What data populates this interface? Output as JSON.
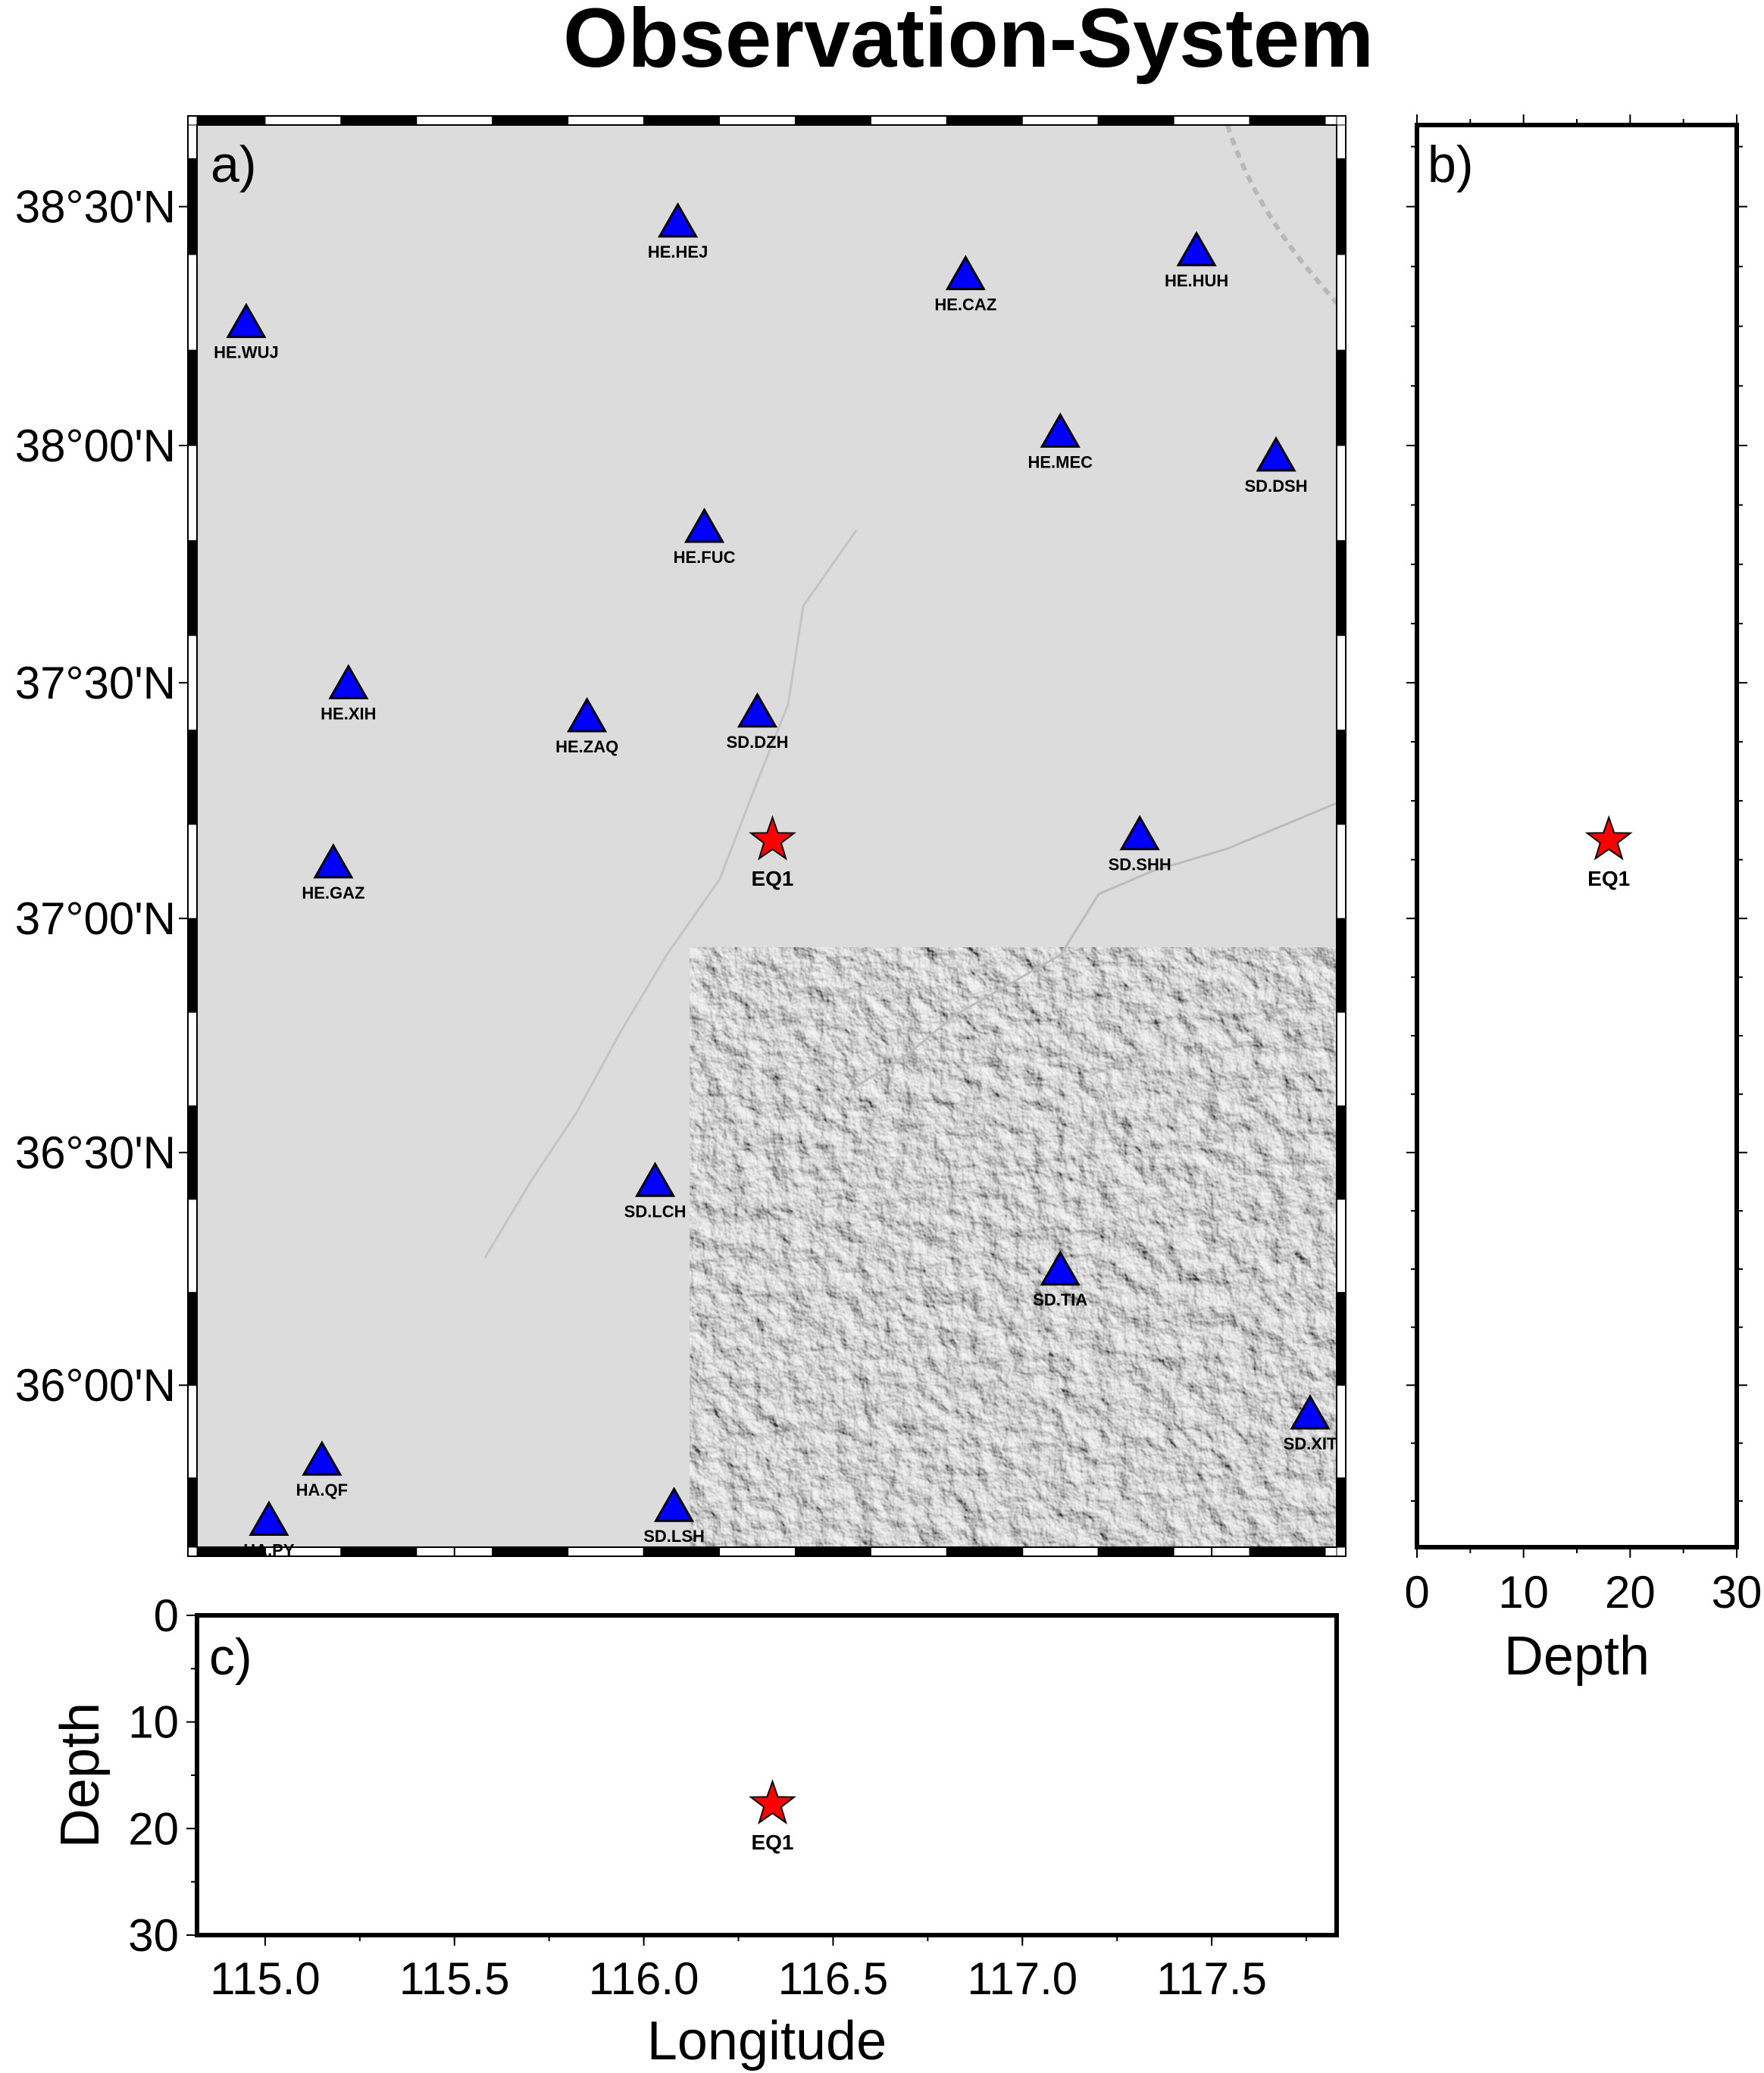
{
  "title": "Observation-System",
  "colors": {
    "station": "#0000ff",
    "event": "#ff0000",
    "map_background": "#d6d6d6",
    "relief_shade": "#a8a8a8",
    "relief_light": "#f4f4f4"
  },
  "icons": {
    "station": "triangle-icon",
    "event": "star-icon"
  },
  "panels": {
    "map": {
      "label": "a)"
    },
    "depth_lat": {
      "label": "b)",
      "xlabel": "Depth"
    },
    "depth_lon": {
      "label": "c)",
      "xlabel": "Longitude",
      "ylabel": "Depth"
    }
  },
  "chart_data": {
    "type": "scatter",
    "map": {
      "projection": "mercator",
      "lon_range": [
        114.82,
        117.83
      ],
      "lat_range": [
        35.65,
        38.67
      ],
      "lat_ticks": [
        {
          "value": 36.0,
          "label": "36°00'N"
        },
        {
          "value": 36.5,
          "label": "36°30'N"
        },
        {
          "value": 37.0,
          "label": "37°00'N"
        },
        {
          "value": 37.5,
          "label": "37°30'N"
        },
        {
          "value": 38.0,
          "label": "38°00'N"
        },
        {
          "value": 38.5,
          "label": "38°30'N"
        }
      ],
      "frame": "alternating black/white border, 0.2° intervals"
    },
    "stations": [
      {
        "name": "HE.HEJ",
        "lon": 116.09,
        "lat": 38.46
      },
      {
        "name": "HE.CAZ",
        "lon": 116.85,
        "lat": 38.35
      },
      {
        "name": "HE.HUH",
        "lon": 117.46,
        "lat": 38.4
      },
      {
        "name": "HE.WUJ",
        "lon": 114.95,
        "lat": 38.25
      },
      {
        "name": "HE.MEC",
        "lon": 117.1,
        "lat": 38.02
      },
      {
        "name": "SD.DSH",
        "lon": 117.67,
        "lat": 37.97
      },
      {
        "name": "HE.FUC",
        "lon": 116.16,
        "lat": 37.82
      },
      {
        "name": "HE.XIH",
        "lon": 115.22,
        "lat": 37.49
      },
      {
        "name": "HE.ZAQ",
        "lon": 115.85,
        "lat": 37.42
      },
      {
        "name": "SD.DZH",
        "lon": 116.3,
        "lat": 37.43
      },
      {
        "name": "SD.SHH",
        "lon": 117.31,
        "lat": 37.17
      },
      {
        "name": "HE.GAZ",
        "lon": 115.18,
        "lat": 37.11
      },
      {
        "name": "SD.LCH",
        "lon": 116.03,
        "lat": 36.43
      },
      {
        "name": "SD.TIA",
        "lon": 117.1,
        "lat": 36.24
      },
      {
        "name": "SD.XIT",
        "lon": 117.76,
        "lat": 35.93
      },
      {
        "name": "HA.QF",
        "lon": 115.15,
        "lat": 35.83
      },
      {
        "name": "SD.LSH",
        "lon": 116.08,
        "lat": 35.73
      },
      {
        "name": "HA.PY",
        "lon": 115.01,
        "lat": 35.7
      }
    ],
    "events": [
      {
        "name": "EQ1",
        "lon": 116.34,
        "lat": 37.16,
        "depth": 18
      }
    ],
    "depth_lat": {
      "x_range": [
        0,
        30
      ],
      "x_ticks": [
        0,
        10,
        20,
        30
      ],
      "xlabel": "Depth"
    },
    "depth_lon": {
      "y_range": [
        0,
        30
      ],
      "y_ticks": [
        0,
        10,
        20,
        30
      ],
      "x_ticks": [
        115.0,
        115.5,
        116.0,
        116.5,
        117.0,
        117.5
      ],
      "x_tick_labels": [
        "115.0",
        "115.5",
        "116.0",
        "116.5",
        "117.0",
        "117.5"
      ],
      "xlabel": "Longitude",
      "ylabel": "Depth"
    }
  }
}
